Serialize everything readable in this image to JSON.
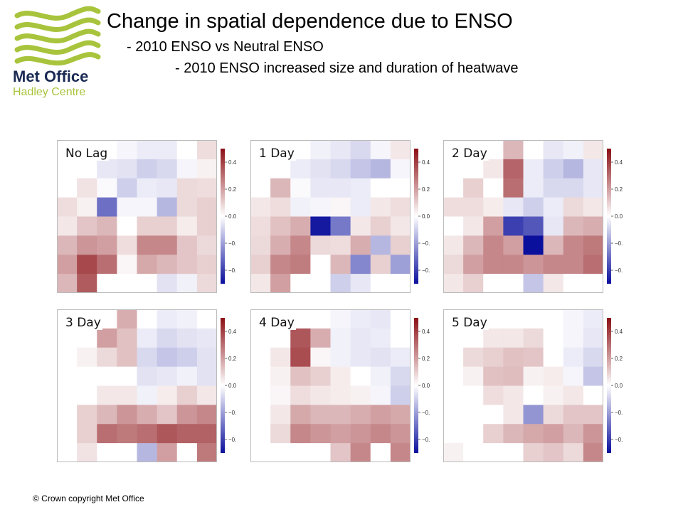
{
  "header": {
    "title": "Change in spatial dependence due to ENSO",
    "subtitle_1": "- 2010 ENSO vs Neutral ENSO",
    "subtitle_2": "- 2010 ENSO increased size and duration of heatwave"
  },
  "logo": {
    "line1": "Met Office",
    "line2": "Hadley Centre",
    "colors": {
      "green": "#a8c43c",
      "navy": "#1a2a54"
    }
  },
  "footer": {
    "copyright": "© Crown copyright   Met Office"
  },
  "chart_data": {
    "type": "heatmap",
    "colorscale": {
      "low": "#0a0f9c",
      "mid": "#ffffff",
      "high": "#8b0f14",
      "range": [
        -0.5,
        0.5
      ]
    },
    "colorbar_ticks": [
      "0.4",
      "0.2",
      "0.0",
      "−0.",
      "−0."
    ],
    "panels": [
      {
        "label": "No Lag",
        "values": [
          [
            0.0,
            0.0,
            0.0,
            -0.02,
            -0.04,
            -0.04,
            0.0,
            0.07
          ],
          [
            0.0,
            0.0,
            -0.05,
            -0.06,
            -0.1,
            -0.08,
            -0.02,
            0.03
          ],
          [
            0.0,
            0.06,
            -0.01,
            -0.1,
            -0.04,
            -0.05,
            0.08,
            0.07
          ],
          [
            0.07,
            0.03,
            -0.3,
            -0.02,
            -0.02,
            -0.15,
            0.08,
            0.1
          ],
          [
            0.05,
            0.12,
            0.15,
            0.0,
            0.1,
            0.1,
            0.04,
            0.1
          ],
          [
            0.15,
            0.22,
            0.2,
            0.07,
            0.25,
            0.25,
            0.12,
            0.08
          ],
          [
            0.2,
            0.38,
            0.3,
            0.02,
            0.18,
            0.15,
            0.12,
            0.1
          ],
          [
            0.15,
            0.34,
            0.0,
            0.0,
            0.0,
            -0.06,
            -0.03,
            0.08
          ]
        ]
      },
      {
        "label": "1 Day",
        "values": [
          [
            0.0,
            0.0,
            0.0,
            -0.03,
            -0.05,
            -0.08,
            -0.02,
            0.05
          ],
          [
            0.0,
            0.0,
            -0.04,
            -0.06,
            -0.08,
            -0.12,
            -0.15,
            -0.02
          ],
          [
            0.0,
            0.15,
            -0.01,
            -0.05,
            -0.05,
            -0.04,
            0.0,
            0.0
          ],
          [
            0.05,
            0.07,
            -0.03,
            -0.02,
            0.02,
            -0.04,
            0.05,
            0.07
          ],
          [
            0.07,
            0.13,
            0.17,
            -0.48,
            -0.28,
            0.05,
            0.1,
            0.05
          ],
          [
            0.08,
            0.17,
            0.25,
            0.08,
            0.07,
            0.17,
            -0.15,
            0.1
          ],
          [
            0.1,
            0.25,
            0.27,
            0.0,
            0.15,
            -0.25,
            0.1,
            -0.2
          ],
          [
            0.05,
            0.2,
            0.0,
            0.0,
            -0.1,
            -0.05,
            0.0,
            0.0
          ]
        ]
      },
      {
        "label": "2 Day",
        "values": [
          [
            0.0,
            0.0,
            0.0,
            0.15,
            0.0,
            -0.05,
            -0.03,
            0.05
          ],
          [
            0.0,
            0.0,
            0.05,
            0.32,
            -0.04,
            -0.1,
            -0.15,
            -0.05
          ],
          [
            0.0,
            0.1,
            0.0,
            0.3,
            -0.04,
            -0.08,
            -0.08,
            -0.05
          ],
          [
            0.07,
            0.07,
            0.04,
            -0.05,
            -0.1,
            -0.04,
            0.08,
            0.05
          ],
          [
            0.0,
            0.05,
            0.2,
            -0.4,
            -0.35,
            -0.05,
            0.15,
            0.17
          ],
          [
            0.05,
            0.15,
            0.25,
            0.2,
            -0.55,
            0.15,
            0.25,
            0.28
          ],
          [
            0.08,
            0.2,
            0.25,
            0.25,
            0.22,
            0.25,
            0.25,
            0.3
          ],
          [
            0.05,
            0.1,
            0.0,
            0.0,
            -0.12,
            0.05,
            0.0,
            0.0
          ]
        ]
      },
      {
        "label": "3 Day",
        "values": [
          [
            0.0,
            0.0,
            0.0,
            0.17,
            0.0,
            -0.04,
            -0.03,
            0.0
          ],
          [
            0.0,
            0.0,
            0.2,
            0.13,
            -0.04,
            -0.08,
            -0.06,
            -0.05
          ],
          [
            0.0,
            0.03,
            0.08,
            0.13,
            -0.08,
            -0.12,
            -0.1,
            -0.06
          ],
          [
            0.0,
            0.0,
            0.0,
            0.0,
            -0.06,
            -0.05,
            -0.03,
            -0.06
          ],
          [
            0.0,
            0.0,
            0.05,
            0.05,
            -0.03,
            0.04,
            0.1,
            0.05
          ],
          [
            0.0,
            0.1,
            0.15,
            0.22,
            0.17,
            0.12,
            0.22,
            0.25
          ],
          [
            0.0,
            0.1,
            0.3,
            0.28,
            0.3,
            0.35,
            0.33,
            0.33
          ],
          [
            0.0,
            0.06,
            0.0,
            0.0,
            -0.15,
            0.2,
            0.0,
            0.28
          ]
        ]
      },
      {
        "label": "4 Day",
        "values": [
          [
            0.0,
            0.0,
            0.0,
            0.0,
            -0.02,
            -0.04,
            -0.05,
            0.0
          ],
          [
            0.0,
            0.0,
            0.35,
            0.17,
            -0.03,
            -0.05,
            -0.04,
            0.0
          ],
          [
            0.0,
            0.05,
            0.37,
            0.02,
            -0.03,
            -0.05,
            -0.06,
            -0.04
          ],
          [
            0.0,
            0.03,
            0.13,
            0.1,
            0.04,
            0.0,
            -0.03,
            -0.08
          ],
          [
            0.0,
            0.02,
            0.07,
            0.05,
            0.04,
            0.03,
            -0.02,
            -0.1
          ],
          [
            0.0,
            0.05,
            0.18,
            0.15,
            0.15,
            0.17,
            0.2,
            0.18
          ],
          [
            0.0,
            0.08,
            0.25,
            0.22,
            0.2,
            0.22,
            0.25,
            0.22
          ],
          [
            0.0,
            0.0,
            0.0,
            0.0,
            0.12,
            0.25,
            0.0,
            0.25
          ]
        ]
      },
      {
        "label": "5 Day",
        "values": [
          [
            0.0,
            0.0,
            0.0,
            0.0,
            0.0,
            0.0,
            -0.02,
            -0.04
          ],
          [
            0.0,
            0.0,
            0.05,
            0.05,
            0.08,
            0.0,
            -0.02,
            -0.05
          ],
          [
            0.0,
            0.08,
            0.1,
            0.13,
            0.12,
            0.0,
            -0.04,
            -0.08
          ],
          [
            0.0,
            0.03,
            0.13,
            0.14,
            0.03,
            0.04,
            -0.02,
            -0.12
          ],
          [
            0.0,
            0.0,
            0.07,
            0.05,
            0.0,
            0.03,
            0.05,
            0.0
          ],
          [
            0.0,
            0.0,
            0.0,
            0.05,
            -0.22,
            0.08,
            0.12,
            0.12
          ],
          [
            0.0,
            0.0,
            0.1,
            0.15,
            0.18,
            0.2,
            0.15,
            0.22
          ],
          [
            0.03,
            0.0,
            0.0,
            0.0,
            0.1,
            0.12,
            0.08,
            0.25
          ]
        ]
      }
    ]
  }
}
